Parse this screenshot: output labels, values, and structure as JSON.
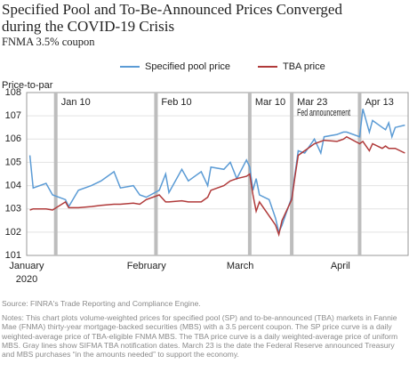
{
  "chart_data": {
    "type": "line",
    "title": [
      "Specified Pool and To-Be-Announced Prices Converged",
      "during the COVID-19 Crisis"
    ],
    "subtitle": "FNMA 3.5% coupon",
    "y_label": "Price-to-par",
    "x": [
      "2020-01-02",
      "2020-01-03",
      "2020-01-07",
      "2020-01-09",
      "2020-01-13",
      "2020-01-14",
      "2020-01-17",
      "2020-01-21",
      "2020-01-24",
      "2020-01-28",
      "2020-01-30",
      "2020-02-03",
      "2020-02-05",
      "2020-02-07",
      "2020-02-11",
      "2020-02-13",
      "2020-02-14",
      "2020-02-18",
      "2020-02-20",
      "2020-02-24",
      "2020-02-26",
      "2020-02-27",
      "2020-03-02",
      "2020-03-04",
      "2020-03-06",
      "2020-03-09",
      "2020-03-10",
      "2020-03-11",
      "2020-03-12",
      "2020-03-13",
      "2020-03-16",
      "2020-03-18",
      "2020-03-19",
      "2020-03-20",
      "2020-03-23",
      "2020-03-24",
      "2020-03-25",
      "2020-03-27",
      "2020-03-30",
      "2020-04-01",
      "2020-04-02",
      "2020-04-06",
      "2020-04-08",
      "2020-04-09",
      "2020-04-13",
      "2020-04-14",
      "2020-04-16",
      "2020-04-17",
      "2020-04-20",
      "2020-04-21",
      "2020-04-22",
      "2020-04-23",
      "2020-04-24",
      "2020-04-27"
    ],
    "series": [
      {
        "name": "Specified pool price",
        "color": "#5b9bd5",
        "values": [
          105.3,
          103.9,
          104.1,
          103.6,
          103.4,
          103.1,
          103.8,
          104.0,
          104.2,
          104.6,
          103.9,
          104.0,
          103.6,
          103.5,
          103.8,
          104.5,
          103.7,
          104.7,
          104.2,
          104.6,
          104.0,
          104.8,
          104.7,
          105.0,
          104.3,
          105.1,
          104.8,
          103.8,
          104.3,
          103.6,
          103.4,
          102.6,
          102.0,
          102.3,
          103.5,
          104.5,
          105.5,
          105.4,
          106.0,
          105.4,
          106.1,
          106.2,
          106.3,
          106.3,
          106.1,
          107.3,
          106.3,
          106.8,
          106.5,
          106.4,
          106.7,
          106.1,
          106.5,
          106.6
        ]
      },
      {
        "name": "TBA price",
        "color": "#b03a3a",
        "values": [
          102.95,
          103.0,
          103.0,
          102.95,
          103.3,
          103.05,
          103.05,
          103.1,
          103.15,
          103.2,
          103.2,
          103.25,
          103.2,
          103.4,
          103.6,
          103.3,
          103.3,
          103.35,
          103.3,
          103.3,
          103.5,
          103.8,
          104.0,
          104.2,
          104.3,
          104.4,
          104.5,
          103.6,
          102.9,
          103.3,
          102.7,
          102.3,
          101.9,
          102.5,
          103.4,
          104.4,
          105.3,
          105.5,
          105.8,
          105.9,
          105.95,
          105.9,
          106.0,
          106.1,
          105.8,
          105.9,
          105.5,
          105.8,
          105.6,
          105.7,
          105.6,
          105.6,
          105.6,
          105.4
        ]
      }
    ],
    "xlim": [
      "2020-01-01",
      "2020-04-28"
    ],
    "xticks": [
      {
        "value": "2020-01-01",
        "label": "January"
      },
      {
        "value": "2020-02-01",
        "label": "February"
      },
      {
        "value": "2020-03-01",
        "label": "March"
      },
      {
        "value": "2020-04-01",
        "label": "April"
      }
    ],
    "x_year": "2020",
    "ylim": [
      101,
      108
    ],
    "yticks": [
      101,
      102,
      103,
      104,
      105,
      106,
      107,
      108
    ],
    "grid": true,
    "event_color": "#bdbdbd",
    "events": [
      {
        "date": "2020-01-10",
        "label": "Jan 10"
      },
      {
        "date": "2020-02-10",
        "label": "Feb 10"
      },
      {
        "date": "2020-03-10",
        "label": "Mar 10"
      },
      {
        "date": "2020-03-23",
        "label": "Mar 23",
        "note": "Fed announcement"
      },
      {
        "date": "2020-04-13",
        "label": "Apr 13"
      }
    ],
    "source": "Source: FINRA's Trade Reporting and Compliance Engine.",
    "notes": "Notes: This chart plots volume-weighted prices for specified pool (SP) and to-be-announced (TBA) markets in Fannie Mae (FNMA) thirty-year mortgage-backed securities (MBS) with a 3.5 percent coupon. The SP price curve is a daily weighted-average price of TBA-eligible FNMA MBS. The TBA price curve is a daily weighted-average price of uniform MBS. Gray lines show SIFMA TBA notification dates. March 23 is the date the Federal Reserve announced Treasury and MBS purchases “in the amounts needed” to support the economy."
  }
}
